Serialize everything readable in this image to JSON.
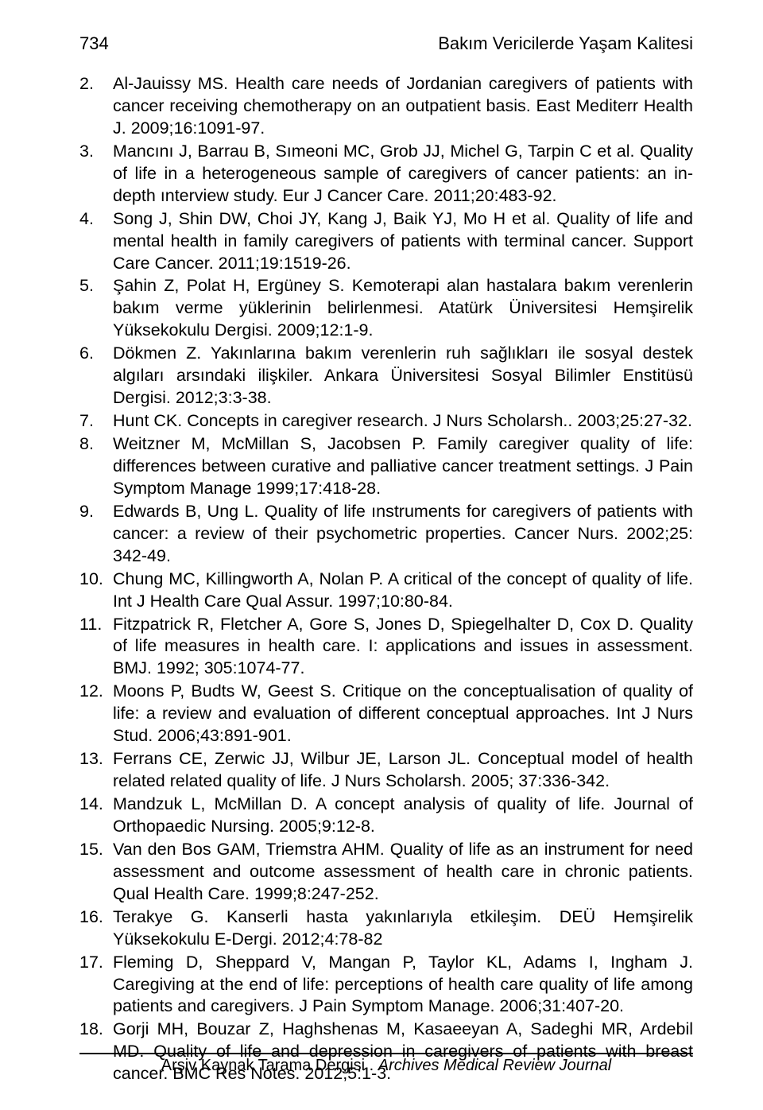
{
  "page_number": "734",
  "header_title": "Bakım Vericilerde Yaşam Kalitesi",
  "references": [
    {
      "num": "2.",
      "text": "Al-Jauissy MS. Health care needs of Jordanian caregivers of patients with cancer receiving chemotherapy on an outpatient basis. East Mediterr Health J. 2009;16:1091-97."
    },
    {
      "num": "3.",
      "text": "Mancını J, Barrau B, Sımeoni MC, Grob JJ, Michel G, Tarpin C et al. Quality of life in a heterogeneous sample of caregivers of cancer patients: an in-depth ınterview study. Eur J Cancer Care. 2011;20:483-92."
    },
    {
      "num": "4.",
      "text": "Song J, Shin DW, Choi JY, Kang J, Baik YJ, Mo H et al. Quality of life and mental health in family caregivers of patients with terminal cancer. Support Care Cancer. 2011;19:1519-26."
    },
    {
      "num": "5.",
      "text": "Şahin Z, Polat H, Ergüney S. Kemoterapi alan hastalara bakım verenlerin bakım verme yüklerinin belirlenmesi. Atatürk Üniversitesi Hemşirelik Yüksekokulu Dergisi. 2009;12:1-9."
    },
    {
      "num": "6.",
      "text": "Dökmen Z. Yakınlarına bakım verenlerin ruh sağlıkları ile sosyal destek algıları arsındaki ilişkiler. Ankara Üniversitesi Sosyal Bilimler Enstitüsü Dergisi. 2012;3:3-38."
    },
    {
      "num": "7.",
      "text": "Hunt CK. Concepts in caregiver research. J Nurs Scholarsh.. 2003;25:27-32."
    },
    {
      "num": "8.",
      "text": "Weitzner M, McMillan S, Jacobsen P. Family caregiver quality of life: differences between curative and palliative cancer treatment settings. J Pain Symptom Manage 1999;17:418-28."
    },
    {
      "num": "9.",
      "text": "Edwards B, Ung L. Quality of life ınstruments for caregivers of patients with cancer: a review of their psychometric properties. Cancer Nurs. 2002;25: 342-49."
    },
    {
      "num": "10.",
      "text": "Chung MC, Killingworth A, Nolan P. A critical of the concept of quality of life. Int J Health Care Qual Assur. 1997;10:80-84."
    },
    {
      "num": "11.",
      "text": "Fitzpatrick R, Fletcher A, Gore S, Jones D, Spiegelhalter D, Cox D. Quality of life measures in health care. I: applications and issues in assessment. BMJ. 1992; 305:1074-77."
    },
    {
      "num": "12.",
      "text": "Moons P, Budts W, Geest S. Critique on the conceptualisation of quality of life: a review and evaluation of different conceptual approaches. Int J Nurs Stud. 2006;43:891-901."
    },
    {
      "num": "13.",
      "text": "Ferrans CE, Zerwic JJ, Wilbur JE, Larson JL. Conceptual model of health related related quality of life. J Nurs Scholarsh. 2005; 37:336-342."
    },
    {
      "num": "14.",
      "text": "Mandzuk L, McMillan D. A concept analysis of quality of life. Journal of Orthopaedic Nursing. 2005;9:12-8."
    },
    {
      "num": "15.",
      "text": "Van den Bos GAM, Triemstra AHM. Quality of life as an instrument for need assessment and outcome assessment of health care in chronic patients. Qual Health Care. 1999;8:247-252."
    },
    {
      "num": "16.",
      "text": "Terakye G. Kanserli hasta yakınlarıyla etkileşim. DEÜ Hemşirelik Yüksekokulu E-Dergi. 2012;4:78-82"
    },
    {
      "num": "17.",
      "text": "Fleming D, Sheppard V, Mangan P, Taylor KL, Adams I, Ingham J. Caregiving at the end of life: perceptions of health care quality of life among patients and caregivers. J Pain Symptom Manage. 2006;31:407-20."
    },
    {
      "num": "18.",
      "text": "Gorji MH, Bouzar Z, Haghshenas M, Kasaeeyan A, Sadeghi MR, Ardebil MD. Quality of life and depression in caregivers of patients with breast cancer. BMC Res Notes. 2012;5:1-3."
    }
  ],
  "footer_left": "Arşiv Kaynak Tarama Dergisi .",
  "footer_right": "Archives Medical Review Journal"
}
